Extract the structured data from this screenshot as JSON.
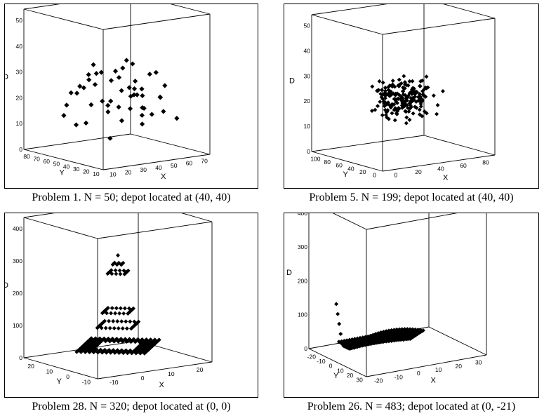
{
  "chart_data": [
    {
      "type": "scatter",
      "subtype": "3d-scatter",
      "caption": "Problem 1. N = 50; depot located at (40, 40)",
      "xlabel": "X",
      "ylabel": "Y",
      "zlabel": "D",
      "xlim": [
        0,
        70
      ],
      "ylim": [
        0,
        80
      ],
      "zlim": [
        0,
        50
      ],
      "x_ticks": [
        "10",
        "20",
        "30",
        "40",
        "50",
        "60",
        "70"
      ],
      "y_ticks": [
        "80",
        "70",
        "60",
        "50",
        "40",
        "30",
        "20",
        "10"
      ],
      "z_ticks": [
        "0",
        "10",
        "20",
        "30",
        "40",
        "50"
      ],
      "points": [
        [
          37,
          52,
          13
        ],
        [
          49,
          49,
          21
        ],
        [
          52,
          64,
          23
        ],
        [
          20,
          26,
          19
        ],
        [
          40,
          30,
          23
        ],
        [
          21,
          47,
          28
        ],
        [
          17,
          63,
          16
        ],
        [
          31,
          62,
          24
        ],
        [
          52,
          33,
          27
        ],
        [
          51,
          21,
          20
        ],
        [
          42,
          41,
          32
        ],
        [
          31,
          32,
          17
        ],
        [
          5,
          25,
          14
        ],
        [
          12,
          42,
          25
        ],
        [
          36,
          16,
          12
        ],
        [
          52,
          41,
          21
        ],
        [
          27,
          23,
          24
        ],
        [
          17,
          33,
          30
        ],
        [
          13,
          13,
          9
        ],
        [
          57,
          58,
          28
        ],
        [
          62,
          42,
          26
        ],
        [
          42,
          57,
          16
        ],
        [
          16,
          57,
          21
        ],
        [
          8,
          52,
          14
        ],
        [
          7,
          38,
          12
        ],
        [
          27,
          68,
          19
        ],
        [
          30,
          48,
          28
        ],
        [
          43,
          67,
          15
        ],
        [
          58,
          48,
          13
        ],
        [
          58,
          27,
          23
        ],
        [
          37,
          69,
          14
        ],
        [
          38,
          46,
          28
        ],
        [
          61,
          33,
          13
        ],
        [
          62,
          63,
          21
        ],
        [
          63,
          69,
          15
        ],
        [
          45,
          35,
          20
        ],
        [
          56,
          37,
          12
        ],
        [
          55,
          45,
          18
        ],
        [
          30,
          56,
          30
        ],
        [
          35,
          62,
          22
        ],
        [
          25,
          58,
          22
        ],
        [
          30,
          38,
          26
        ],
        [
          47,
          45,
          14
        ],
        [
          46,
          13,
          21
        ],
        [
          60,
          18,
          12
        ],
        [
          30,
          15,
          23
        ],
        [
          33,
          32,
          12
        ],
        [
          46,
          51,
          28
        ],
        [
          40,
          22,
          17
        ],
        [
          32,
          10,
          16
        ]
      ]
    },
    {
      "type": "scatter",
      "subtype": "3d-scatter",
      "caption": "Problem 5. N = 199; depot located at (40, 40)",
      "xlabel": "X",
      "ylabel": "Y",
      "zlabel": "D",
      "xlim": [
        0,
        80
      ],
      "ylim": [
        -20,
        100
      ],
      "zlim": [
        0,
        50
      ],
      "x_ticks": [
        "0",
        "20",
        "40",
        "60",
        "80"
      ],
      "y_ticks": [
        "100",
        "80",
        "60",
        "40",
        "20",
        "0"
      ],
      "z_ticks": [
        "0",
        "10",
        "20",
        "30",
        "40",
        "50"
      ],
      "points": "generated: 199 customers scattered around depot (40, 40)"
    },
    {
      "type": "scatter",
      "subtype": "3d-scatter",
      "caption": "Problem 28. N = 320; depot located at (0, 0)",
      "xlabel": "X",
      "ylabel": "Y",
      "zlabel": "D",
      "xlim": [
        -20,
        20
      ],
      "ylim": [
        -20,
        20
      ],
      "zlim": [
        0,
        400
      ],
      "x_ticks": [
        "-10",
        "0",
        "10",
        "20"
      ],
      "y_ticks": [
        "20",
        "10",
        "0",
        "-10"
      ],
      "z_ticks": [
        "0",
        "100",
        "200",
        "300",
        "400"
      ],
      "points": "generated: diamond lattice |x|+|y|≤16 around depot (0, 0)"
    },
    {
      "type": "scatter",
      "subtype": "3d-scatter",
      "caption": "Problem 26. N = 483; depot located at (0, -21)",
      "xlabel": "X",
      "ylabel": "Y",
      "zlabel": "D",
      "xlim": [
        -20,
        30
      ],
      "ylim": [
        -20,
        30
      ],
      "zlim": [
        0,
        400
      ],
      "x_ticks": [
        "-20",
        "-10",
        "0",
        "10",
        "20",
        "30"
      ],
      "y_ticks": [
        "-20",
        "-10",
        "0",
        "10",
        "20",
        "30"
      ],
      "z_ticks": [
        "0",
        "100",
        "200",
        "300",
        "400"
      ],
      "points": "generated: dense grid, distance from depot (0, -21)"
    }
  ]
}
